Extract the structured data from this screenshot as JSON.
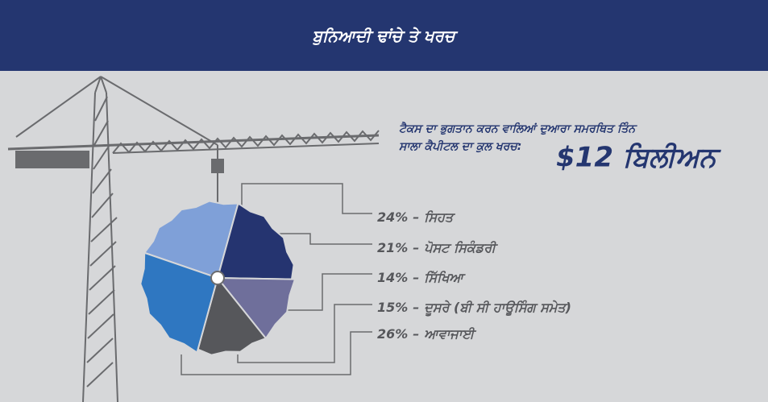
{
  "header": {
    "title": "ਬੁਨਿਆਦੀ ਢਾਂਚੇ ਤੇ ਖਰਚ"
  },
  "chart_data": {
    "type": "pie",
    "subtitle": "ਟੈਕਸ ਦਾ ਭੁਗਤਾਨ ਕਰਨ ਵਾਲਿਆਂ ਦੁਆਰਾ ਸਮਰਥਿਤ ਤਿੰਨ ਸਾਲਾ ਕੈਪੀਟਲ ਦਾ ਕੁਲ ਖਰਚ:",
    "total_label": "$12 ਬਿਲੀਅਨ",
    "categories": [
      "ਸਿਹਤ",
      "ਪੋਸਟ ਸਿਕੰਡਰੀ",
      "ਸਿੱਖਿਆ",
      "ਦੂਸਰੇ (ਬੀ ਸੀ ਹਾਊਸਿੰਗ ਸਮੇਤ)",
      "ਆਵਾਜਾਈ"
    ],
    "values": [
      24,
      21,
      14,
      15,
      26
    ],
    "value_labels": [
      "24%",
      "21%",
      "14%",
      "15%",
      "26%"
    ],
    "label_separator": "–",
    "colors": [
      "#7fa0d8",
      "#253470",
      "#6f6f9b",
      "#56575b",
      "#2f77c1"
    ]
  }
}
